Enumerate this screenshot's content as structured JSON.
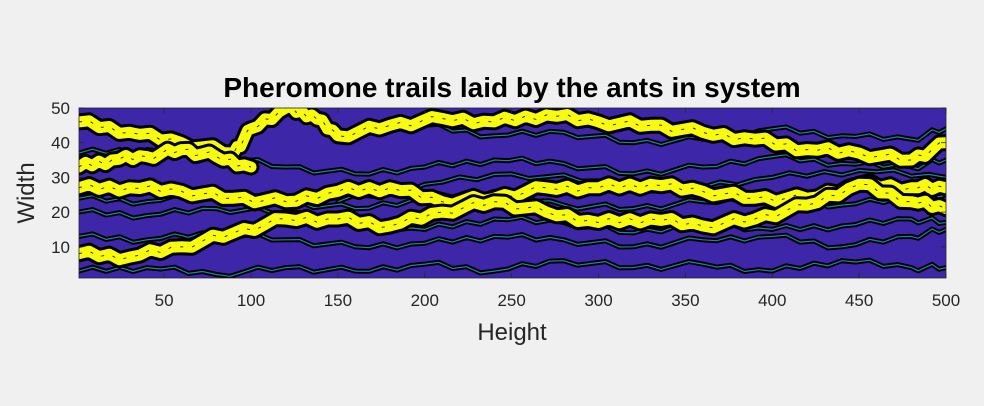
{
  "chart_data": {
    "type": "heatmap",
    "title": "Pheromone trails laid by the ants in system",
    "xlabel": "Height",
    "ylabel": "Width",
    "xlim": [
      1,
      500
    ],
    "ylim": [
      1,
      50
    ],
    "xticks": [
      "50",
      "100",
      "150",
      "200",
      "250",
      "300",
      "350",
      "400",
      "450",
      "500"
    ],
    "yticks": [
      "10",
      "20",
      "30",
      "40",
      "50"
    ],
    "colors": {
      "background": "#3d26a8",
      "trail_high": "#f9fb0e",
      "trail_mid": "#27bdd9",
      "contour": "#000000"
    },
    "trails_high": [
      {
        "x": [
          1,
          30,
          60,
          90,
          120,
          150,
          180,
          210,
          240,
          270,
          300,
          330,
          360,
          390,
          420,
          450,
          480,
          500
        ],
        "y": [
          27,
          27,
          26,
          24,
          23,
          26,
          27,
          23,
          24,
          27,
          27,
          28,
          26,
          24,
          24,
          28,
          27,
          27
        ]
      },
      {
        "x": [
          1,
          30,
          60,
          90,
          120,
          150,
          180,
          210,
          240,
          270,
          300,
          330,
          360,
          390,
          420,
          450,
          480,
          500
        ],
        "y": [
          8,
          7,
          10,
          14,
          18,
          18,
          16,
          20,
          23,
          20,
          17,
          18,
          16,
          18,
          22,
          28,
          23,
          21
        ]
      },
      {
        "x": [
          1,
          30,
          60,
          90,
          100,
          120,
          135,
          150,
          180,
          210,
          240,
          270,
          300,
          330,
          360,
          390,
          420,
          450,
          480,
          500
        ],
        "y": [
          46,
          43,
          40,
          37,
          44,
          50,
          48,
          42,
          45,
          47,
          46,
          48,
          46,
          45,
          43,
          41,
          38,
          37,
          35,
          40
        ]
      },
      {
        "x": [
          1,
          20,
          40,
          60,
          80,
          100
        ],
        "y": [
          33,
          35,
          36,
          38,
          36,
          33
        ]
      }
    ],
    "trails_low": [
      {
        "x": [
          1,
          40,
          80,
          120,
          160,
          200,
          240,
          280,
          320,
          360,
          400,
          440,
          480,
          500
        ],
        "y": [
          37,
          38,
          36,
          33,
          31,
          33,
          35,
          34,
          31,
          33,
          36,
          34,
          33,
          35
        ]
      },
      {
        "x": [
          1,
          40,
          80,
          120,
          160,
          200,
          240,
          280,
          320,
          360,
          400,
          440,
          480,
          500
        ],
        "y": [
          20,
          19,
          21,
          20,
          17,
          15,
          18,
          17,
          14,
          17,
          15,
          16,
          18,
          17
        ]
      },
      {
        "x": [
          1,
          40,
          80,
          120,
          160,
          200,
          240,
          280,
          320,
          360,
          400,
          440,
          480,
          500
        ],
        "y": [
          13,
          12,
          14,
          12,
          10,
          11,
          13,
          12,
          10,
          12,
          13,
          10,
          13,
          15
        ]
      },
      {
        "x": [
          1,
          40,
          80,
          120,
          160,
          200,
          240,
          280,
          320,
          360,
          400,
          440,
          480,
          500
        ],
        "y": [
          3,
          4,
          2,
          4,
          3,
          5,
          3,
          6,
          4,
          5,
          3,
          6,
          4,
          4
        ]
      },
      {
        "x": [
          150,
          200,
          250,
          300,
          350,
          400,
          450,
          500
        ],
        "y": [
          23,
          28,
          31,
          29,
          27,
          30,
          32,
          30
        ]
      },
      {
        "x": [
          200,
          240,
          280,
          320,
          360,
          400,
          440,
          480,
          500
        ],
        "y": [
          45,
          42,
          43,
          40,
          41,
          44,
          42,
          41,
          44
        ]
      },
      {
        "x": [
          1,
          40,
          80,
          120,
          160,
          200,
          240,
          280,
          320,
          360,
          400,
          440,
          480,
          500
        ],
        "y": [
          24,
          23,
          25,
          23,
          21,
          24,
          26,
          22,
          21,
          23,
          24,
          22,
          24,
          25
        ]
      }
    ]
  }
}
